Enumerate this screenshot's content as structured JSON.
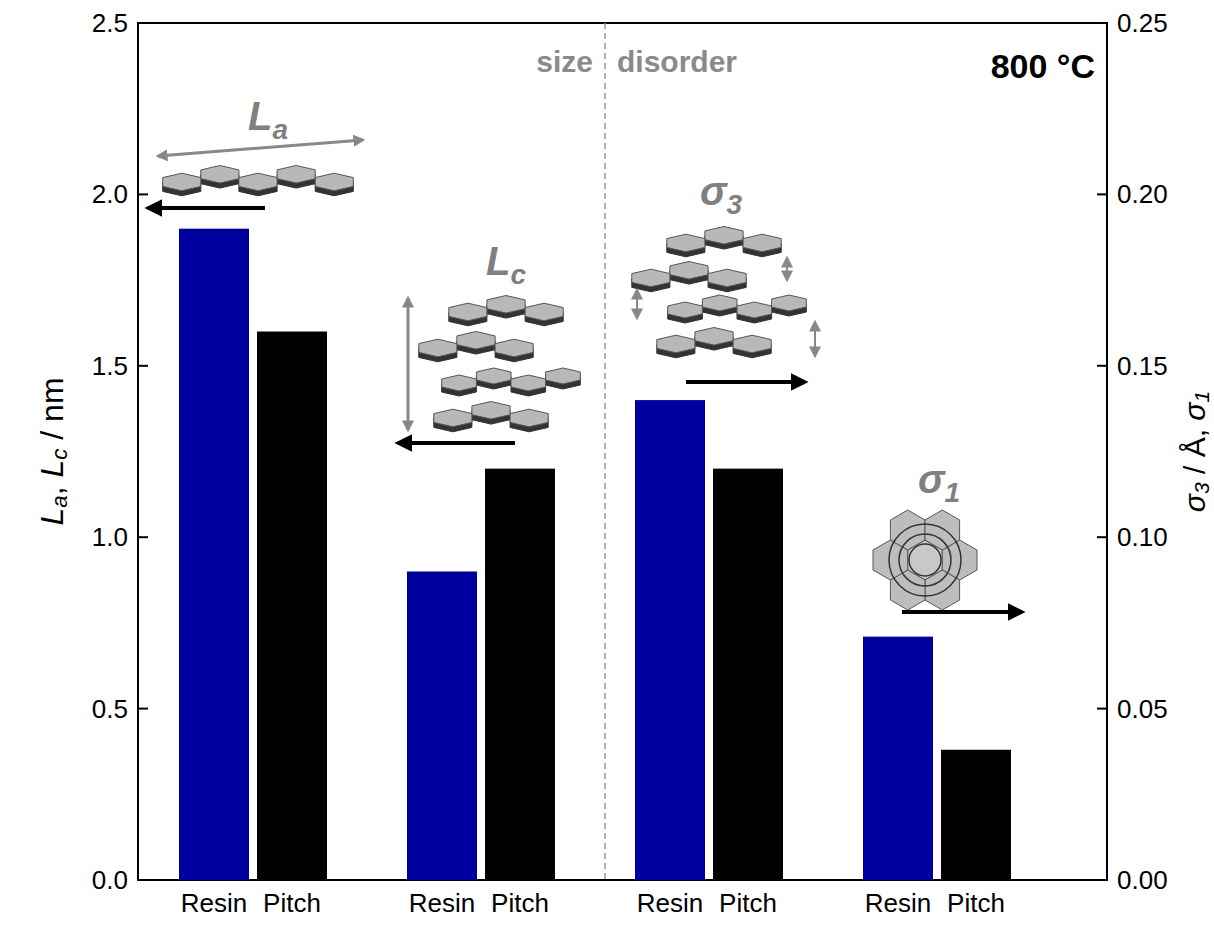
{
  "chart_data": {
    "type": "bar",
    "categories": [
      "Resin",
      "Pitch",
      "Resin",
      "Pitch",
      "Resin",
      "Pitch",
      "Resin",
      "Pitch"
    ],
    "series": [
      {
        "values": [
          1.9,
          1.6,
          0.9,
          1.2,
          null,
          null,
          null,
          null
        ],
        "colors": [
          "#00009e",
          "#000000",
          "#00009e",
          "#000000",
          "#00009e",
          "#000000",
          "#00009e",
          "#000000"
        ]
      },
      {
        "axis": "y2",
        "values": [
          null,
          null,
          null,
          null,
          0.14,
          0.12,
          0.071,
          0.038
        ],
        "colors": [
          "#00009e",
          "#000000",
          "#00009e",
          "#000000",
          "#00009e",
          "#000000",
          "#00009e",
          "#000000"
        ]
      }
    ],
    "y_label": "La, Lc / nm",
    "y2_label": "σ3 / Å, σ1",
    "ylim": [
      0,
      2.5
    ],
    "yticks": [
      {
        "value": 0,
        "label": "0.0"
      },
      0.5,
      {
        "value": 1,
        "label": "1.0"
      },
      1.5,
      {
        "value": 2,
        "label": "2.0"
      },
      2.5
    ],
    "y2lim": [
      0,
      0.25
    ],
    "y2ticks": [
      {
        "value": 0,
        "label": "0.00"
      },
      0.05,
      {
        "value": 0.1,
        "label": "0.10"
      },
      0.15,
      {
        "value": 0.2,
        "label": "0.20"
      },
      0.25
    ],
    "annotations": [
      "La",
      "Lc",
      "σ3",
      "σ1",
      "size",
      "disorder",
      "800 °C"
    ]
  }
}
